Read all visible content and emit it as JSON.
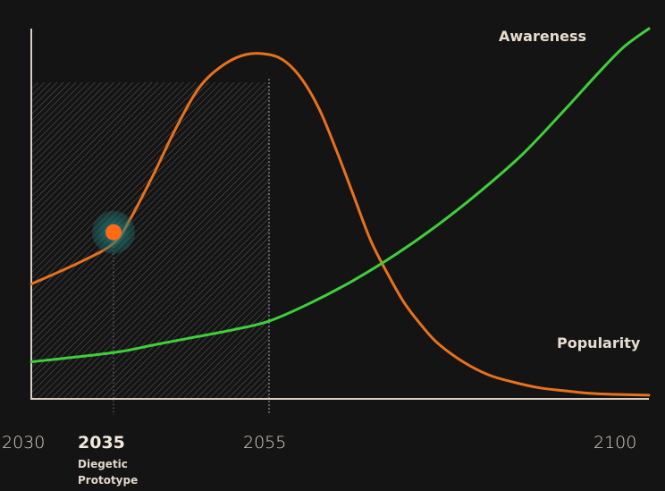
{
  "chart_data": {
    "type": "line",
    "x_ticks": [
      "2030",
      "2035",
      "2055",
      "2100"
    ],
    "highlight": {
      "x": 2035,
      "label": "2035",
      "sublabel": [
        "Diegetic",
        "Prototype"
      ],
      "y": 0.45
    },
    "shaded_region": [
      2030,
      2055
    ],
    "ylim": [
      0,
      1
    ],
    "series": [
      {
        "name": "Popularity",
        "color": "#e8711c",
        "x": [
          2030,
          2033,
          2035,
          2037,
          2040,
          2043,
          2046,
          2049,
          2052,
          2055,
          2057,
          2059,
          2061,
          2063,
          2065,
          2067,
          2069,
          2071,
          2073,
          2075,
          2078,
          2081,
          2084,
          2087,
          2090,
          2093,
          2096,
          2100
        ],
        "y": [
          0.31,
          0.37,
          0.42,
          0.48,
          0.6,
          0.73,
          0.84,
          0.9,
          0.93,
          0.93,
          0.91,
          0.86,
          0.78,
          0.67,
          0.55,
          0.43,
          0.34,
          0.26,
          0.2,
          0.15,
          0.1,
          0.065,
          0.045,
          0.03,
          0.022,
          0.015,
          0.012,
          0.01
        ]
      },
      {
        "name": "Awareness",
        "color": "#3ecf3a",
        "x": [
          2030,
          2035,
          2040,
          2045,
          2050,
          2055,
          2060,
          2065,
          2070,
          2075,
          2080,
          2085,
          2090,
          2094,
          2097,
          2100
        ],
        "y": [
          0.1,
          0.125,
          0.145,
          0.165,
          0.185,
          0.21,
          0.26,
          0.32,
          0.39,
          0.47,
          0.56,
          0.66,
          0.78,
          0.88,
          0.95,
          1.0
        ]
      }
    ],
    "grid": false,
    "legend": "inline labels near series ends"
  }
}
